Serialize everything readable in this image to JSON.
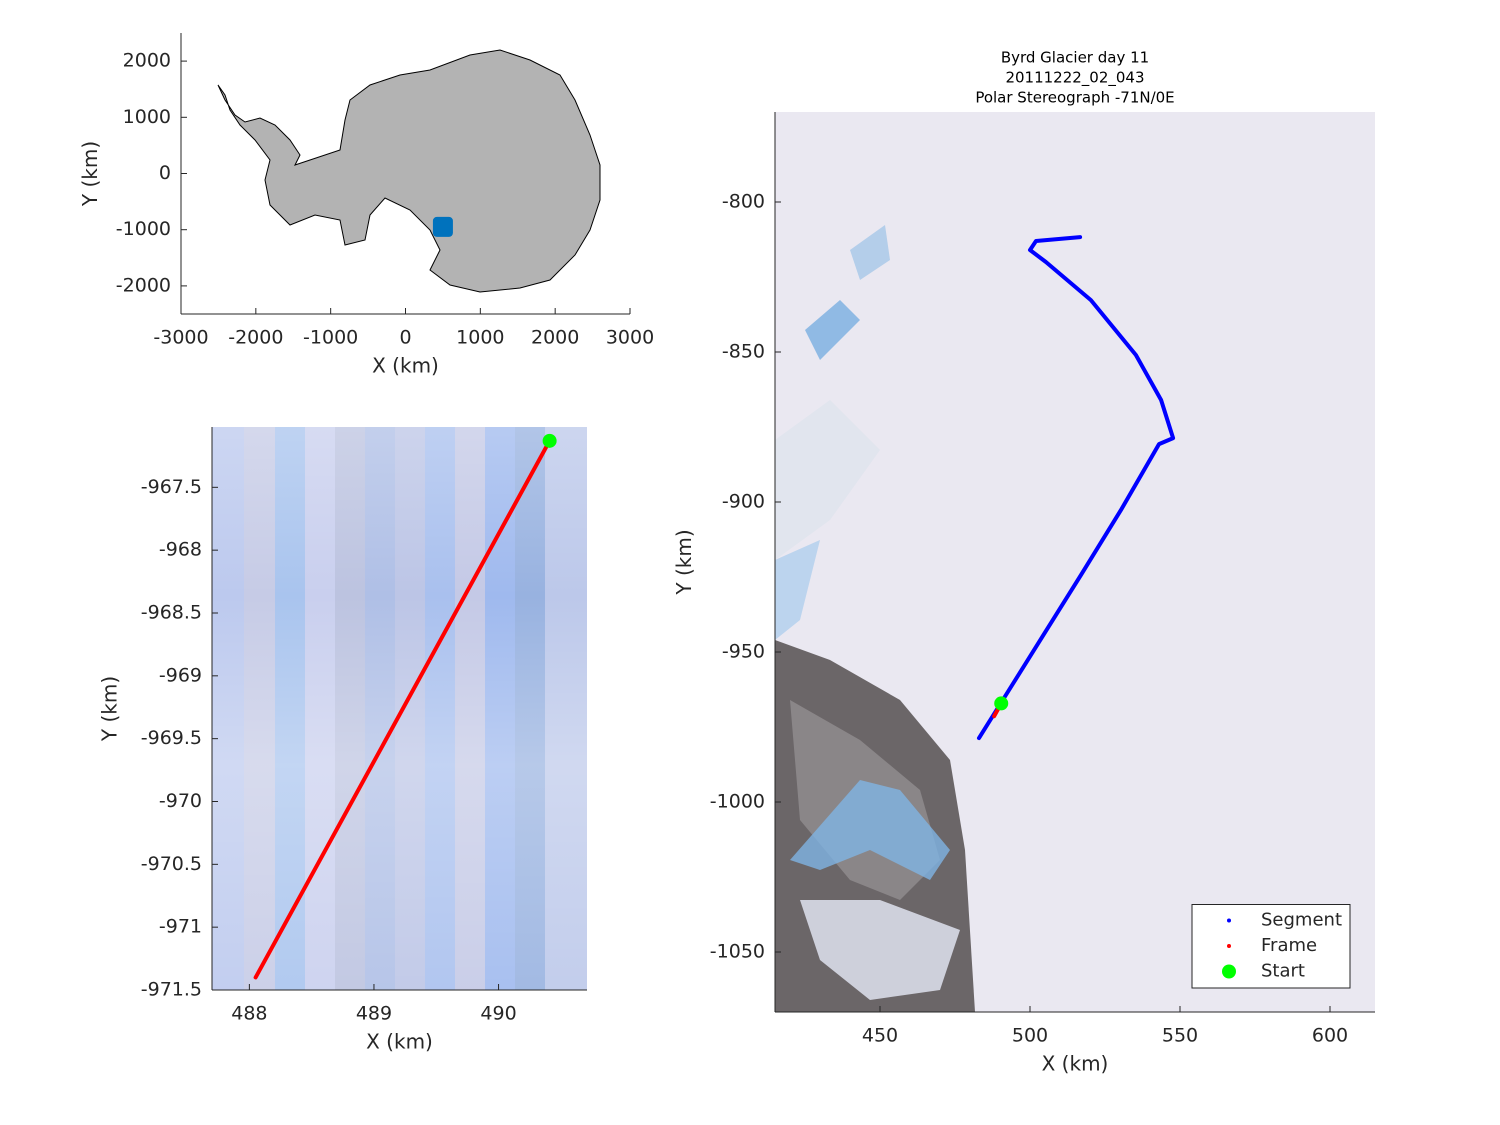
{
  "chart_data": [
    {
      "type": "line",
      "xlabel": "X (km)",
      "ylabel": "Y (km)",
      "xlim": [
        -3000,
        3000
      ],
      "ylim": [
        -2500,
        2500
      ],
      "xticks": [
        -3000,
        -2000,
        -1000,
        0,
        1000,
        2000,
        3000
      ],
      "yticks": [
        -2000,
        -1000,
        0,
        1000,
        2000
      ],
      "series": [
        {
          "color": "#0072bd",
          "marker": "square",
          "x": [
            500
          ],
          "y": [
            -950
          ]
        }
      ]
    },
    {
      "type": "line",
      "xlabel": "X (km)",
      "ylabel": "Y (km)",
      "xlim": [
        487.7,
        490.71
      ],
      "ylim": [
        -971.5,
        -967.02
      ],
      "xticks": [
        488,
        489,
        490
      ],
      "yticks": [
        -967.5,
        -968,
        -968.5,
        -969,
        -969.5,
        -970,
        -970.5,
        -971,
        -971.5
      ],
      "series": [
        {
          "color": "#ff0000",
          "marker": "line",
          "x": [
            488.05,
            490.41
          ],
          "y": [
            -971.4,
            -967.13
          ]
        },
        {
          "color": "#00ff00",
          "marker": "circle",
          "x": [
            490.41
          ],
          "y": [
            -967.13
          ]
        }
      ]
    },
    {
      "type": "line",
      "title": [
        "Byrd Glacier day 11",
        "20111222_02_043",
        "Polar Stereograph -71N/0E"
      ],
      "xlabel": "X (km)",
      "ylabel": "Y (km)",
      "xlim": [
        415,
        615
      ],
      "ylim": [
        -1070,
        -770
      ],
      "xticks": [
        450,
        500,
        550,
        600
      ],
      "yticks": [
        -800,
        -850,
        -900,
        -950,
        -1000,
        -1050
      ],
      "legend": "lower right",
      "series": [
        {
          "name": "Segment",
          "color": "#0000ff",
          "marker": "line",
          "x": [
            516.7,
            502,
            500,
            505.3,
            520.3,
            535.3,
            543.7,
            547.7,
            543,
            530.3,
            517,
            490.3,
            483
          ],
          "y": [
            -811.7,
            -813,
            -816,
            -820,
            -832.7,
            -851,
            -866,
            -878.7,
            -880.7,
            -902.7,
            -924.3,
            -967,
            -978.7
          ]
        },
        {
          "name": "Frame",
          "color": "#ff0000",
          "marker": "line",
          "x": [
            488.05,
            490.41
          ],
          "y": [
            -971.4,
            -967.13
          ]
        },
        {
          "name": "Start",
          "color": "#00ff00",
          "marker": "circle",
          "x": [
            490.41
          ],
          "y": [
            -967.13
          ]
        }
      ]
    }
  ]
}
